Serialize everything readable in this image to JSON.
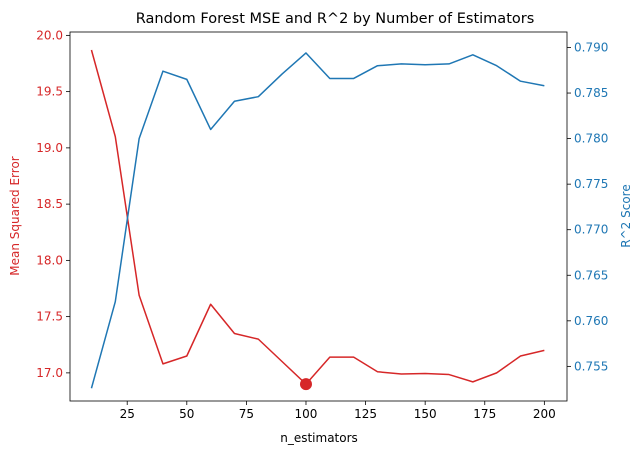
{
  "chart_data": {
    "type": "line",
    "title": "Random Forest MSE and R^2 by Number of Estimators",
    "xlabel": "n_estimators",
    "ylabel_left": "Mean Squared Error",
    "ylabel_right": "R^2 Score",
    "xlim": [
      1,
      209.5
    ],
    "ylim_left": [
      16.75,
      20.03
    ],
    "ylim_right": [
      0.7512,
      0.7917
    ],
    "x_ticks": [
      25,
      50,
      75,
      100,
      125,
      150,
      175,
      200
    ],
    "x_tick_labels": [
      "25",
      "50",
      "75",
      "100",
      "125",
      "150",
      "175",
      "200"
    ],
    "y_left_ticks": [
      17.0,
      17.5,
      18.0,
      18.5,
      19.0,
      19.5,
      20.0
    ],
    "y_left_tick_labels": [
      "17.0",
      "17.5",
      "18.0",
      "18.5",
      "19.0",
      "19.5",
      "20.0"
    ],
    "y_right_ticks": [
      0.755,
      0.76,
      0.765,
      0.77,
      0.775,
      0.78,
      0.785,
      0.79
    ],
    "y_right_tick_labels": [
      "0.755",
      "0.760",
      "0.765",
      "0.770",
      "0.775",
      "0.780",
      "0.785",
      "0.790"
    ],
    "x": [
      10,
      20,
      30,
      40,
      50,
      60,
      70,
      80,
      90,
      100,
      110,
      120,
      130,
      140,
      150,
      160,
      170,
      180,
      190,
      200
    ],
    "series": [
      {
        "axis": "left",
        "color": "#d62728",
        "values": [
          19.87,
          19.1,
          17.69,
          17.08,
          17.15,
          17.61,
          17.35,
          17.3,
          17.1,
          16.9,
          17.14,
          17.14,
          17.01,
          16.99,
          16.995,
          16.985,
          16.92,
          17.0,
          17.15,
          17.2
        ]
      },
      {
        "axis": "right",
        "color": "#1f77b4",
        "values": [
          0.7526,
          0.7621,
          0.78,
          0.7874,
          0.7865,
          0.781,
          0.7841,
          0.7846,
          0.7871,
          0.7894,
          0.7866,
          0.7866,
          0.788,
          0.7882,
          0.7881,
          0.7882,
          0.7892,
          0.788,
          0.7863,
          0.7858
        ]
      }
    ],
    "highlight_point": {
      "x": 100,
      "y": 16.9,
      "axis": "left",
      "color": "#d62728"
    },
    "colors": {
      "left_axis": "#d62728",
      "right_axis": "#1f77b4"
    },
    "grid": false
  }
}
